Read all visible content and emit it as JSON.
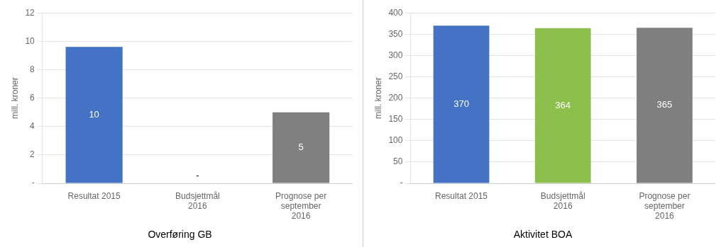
{
  "chart_data": [
    {
      "type": "bar",
      "title": "Overføring GB",
      "categories": [
        "Resultat 2015",
        "Budsjettmål\n2016",
        "Prognose per\nseptember\n2016"
      ],
      "values": [
        9.6,
        0,
        5.0
      ],
      "value_labels": [
        "10",
        "-",
        "5"
      ],
      "colors": [
        "#4472C4",
        "#FFFFFF",
        "#808080"
      ],
      "ylabel": "mill. kroner",
      "ylim": [
        0,
        12
      ],
      "yticks": [
        {
          "value": 0,
          "label": "-"
        },
        2,
        4,
        6,
        8,
        10,
        12
      ],
      "grid": true,
      "data_labels": true
    },
    {
      "type": "bar",
      "title": "Aktivitet BOA",
      "categories": [
        "Resultat 2015",
        "Budsjettmål\n2016",
        "Prognose per\nseptember\n2016"
      ],
      "values": [
        370,
        364,
        365
      ],
      "value_labels": [
        "370",
        "364",
        "365"
      ],
      "colors": [
        "#4472C4",
        "#8DBF4C",
        "#7F7F7F"
      ],
      "ylabel": "mill. kroner",
      "ylim": [
        0,
        400
      ],
      "yticks": [
        {
          "value": 0,
          "label": "-"
        },
        50,
        100,
        150,
        200,
        250,
        300,
        350,
        400
      ],
      "grid": true,
      "data_labels": true
    }
  ]
}
